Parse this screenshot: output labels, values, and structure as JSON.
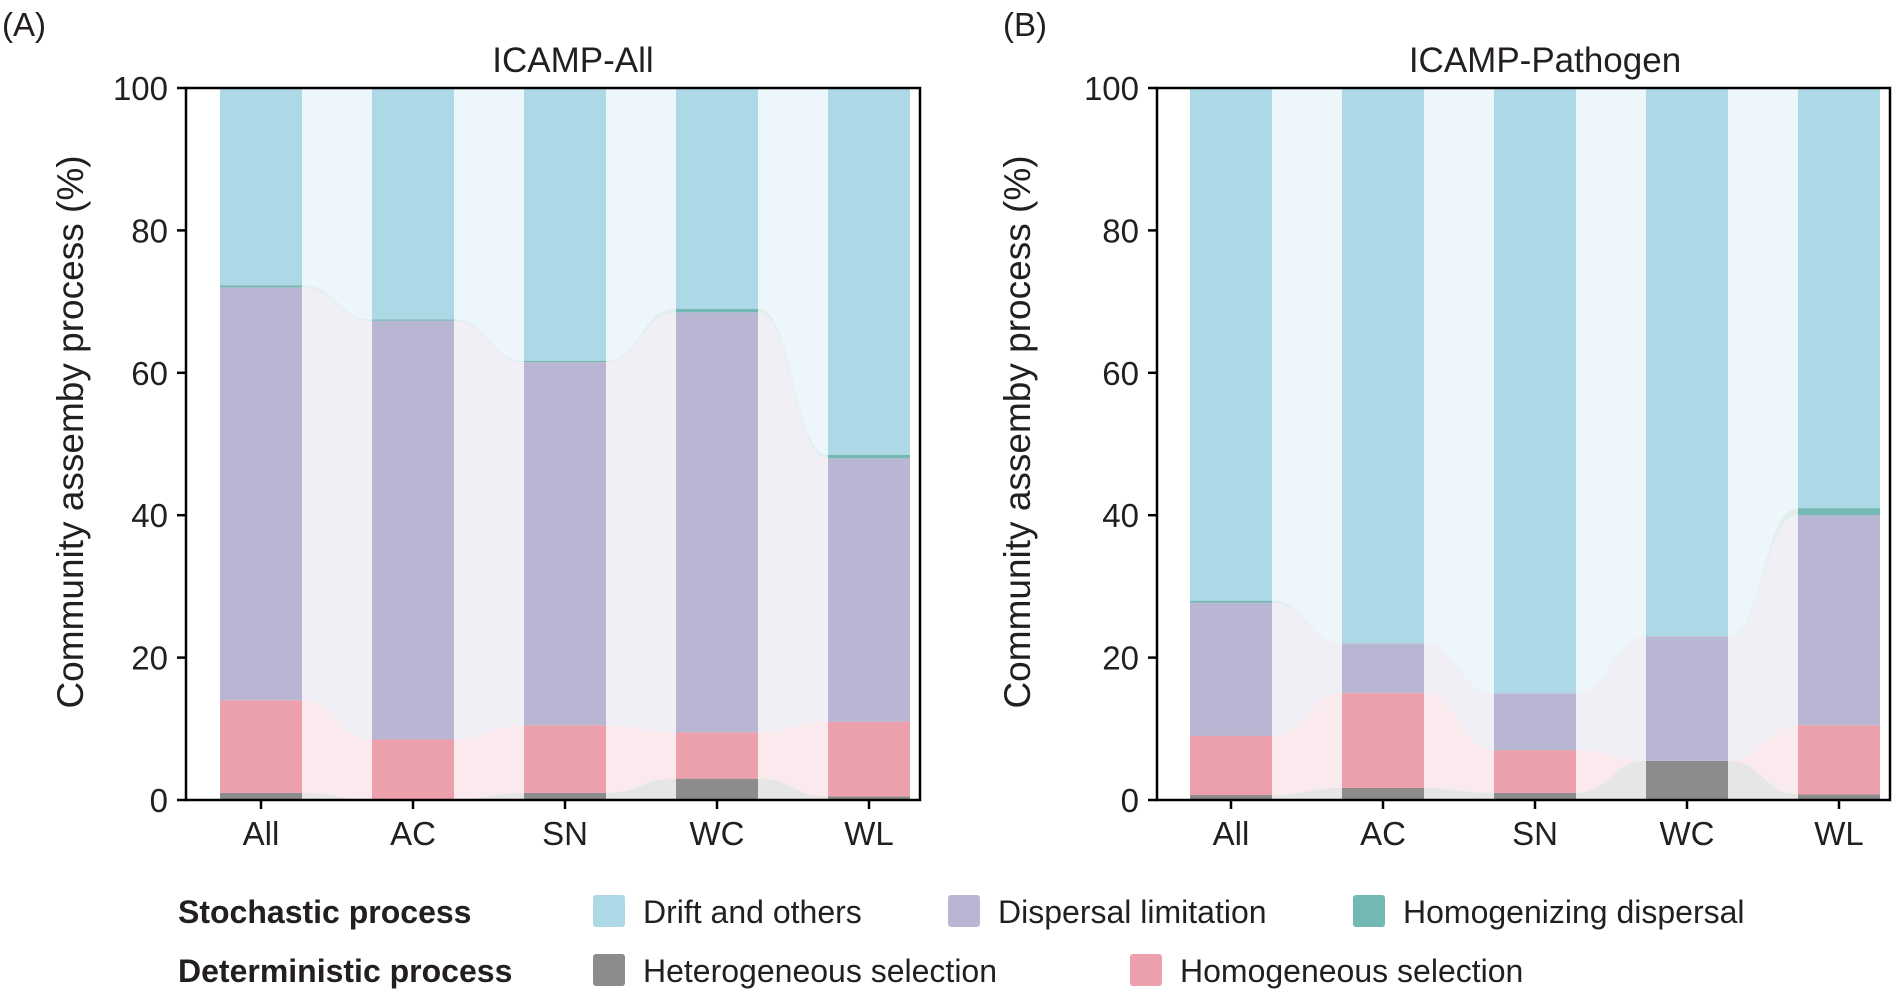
{
  "colors": {
    "drift": "#add8e6",
    "dispersal_limitation": "#b8b6d2",
    "homogenizing_dispersal": "#74b8b3",
    "heterogeneous_selection": "#8c8c8c",
    "homogeneous_selection": "#eca0ab",
    "axis": "#000000",
    "text": "#231f20"
  },
  "legend": {
    "stochastic_label": "Stochastic process",
    "deterministic_label": "Deterministic process",
    "items": {
      "drift": "Drift and others",
      "dispersal_limitation": "Dispersal limitation",
      "homogenizing_dispersal": "Homogenizing dispersal",
      "heterogeneous_selection": "Heterogeneous selection",
      "homogeneous_selection": "Homogeneous selection"
    }
  },
  "chart_data": [
    {
      "panel": "(A)",
      "title": "ICAMP-All",
      "type": "bar",
      "stacked": true,
      "xlabel": "",
      "ylabel": "Community assemby process (%)",
      "ylim": [
        0,
        100
      ],
      "yticks": [
        0,
        20,
        40,
        60,
        80,
        100
      ],
      "categories": [
        "All",
        "AC",
        "SN",
        "WC",
        "WL"
      ],
      "series": [
        {
          "key": "heterogeneous_selection",
          "name": "Heterogeneous selection",
          "values": [
            1.0,
            0.0,
            1.0,
            3.0,
            0.5
          ]
        },
        {
          "key": "homogeneous_selection",
          "name": "Homogeneous selection",
          "values": [
            13.0,
            8.5,
            9.5,
            6.5,
            10.5
          ]
        },
        {
          "key": "dispersal_limitation",
          "name": "Dispersal limitation",
          "values": [
            58.0,
            58.8,
            51.0,
            59.0,
            37.0
          ]
        },
        {
          "key": "homogenizing_dispersal",
          "name": "Homogenizing dispersal",
          "values": [
            0.3,
            0.2,
            0.2,
            0.5,
            0.5
          ]
        },
        {
          "key": "drift",
          "name": "Drift and others",
          "values": [
            27.7,
            32.5,
            38.3,
            31.0,
            51.5
          ]
        }
      ]
    },
    {
      "panel": "(B)",
      "title": "ICAMP-Pathogen",
      "type": "bar",
      "stacked": true,
      "xlabel": "",
      "ylabel": "Community assemby process (%)",
      "ylim": [
        0,
        100
      ],
      "yticks": [
        0,
        20,
        40,
        60,
        80,
        100
      ],
      "categories": [
        "All",
        "AC",
        "SN",
        "WC",
        "WL"
      ],
      "series": [
        {
          "key": "heterogeneous_selection",
          "name": "Heterogeneous selection",
          "values": [
            0.7,
            1.7,
            1.0,
            5.5,
            0.8
          ]
        },
        {
          "key": "homogeneous_selection",
          "name": "Homogeneous selection",
          "values": [
            8.3,
            13.3,
            6.0,
            0.0,
            9.7
          ]
        },
        {
          "key": "dispersal_limitation",
          "name": "Dispersal limitation",
          "values": [
            18.7,
            7.0,
            8.0,
            17.5,
            29.5
          ]
        },
        {
          "key": "homogenizing_dispersal",
          "name": "Homogenizing dispersal",
          "values": [
            0.3,
            0.0,
            0.0,
            0.0,
            1.0
          ]
        },
        {
          "key": "drift",
          "name": "Drift and others",
          "values": [
            72.0,
            78.0,
            85.0,
            77.0,
            59.0
          ]
        }
      ]
    }
  ]
}
